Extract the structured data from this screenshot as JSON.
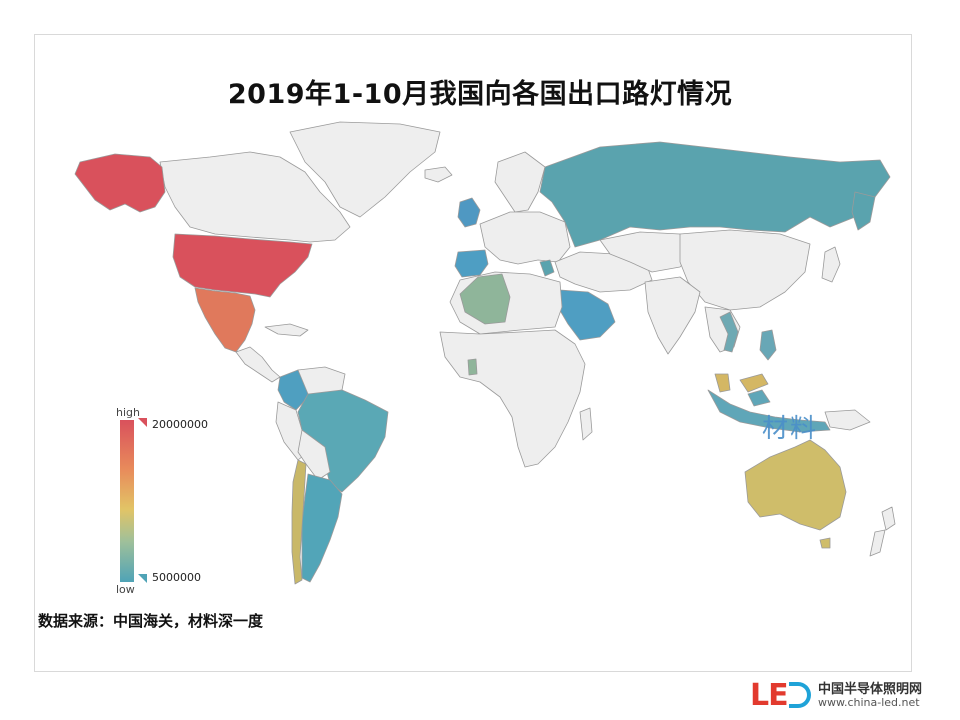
{
  "title": "2019年1-10月我国向各国出口路灯情况",
  "legend": {
    "high_label": "high",
    "low_label": "low",
    "max_value": "20000000",
    "min_value": "5000000",
    "colors": [
      "#d9515c",
      "#e88a5b",
      "#e2c466",
      "#9fc09a",
      "#4fa3b6"
    ]
  },
  "source": "数据来源：中国海关，材料深一度",
  "watermark": "材料",
  "brand": {
    "logo_text": "LE",
    "name": "中国半导体照明网",
    "url": "www.china-led.net"
  },
  "map_colors": {
    "default_land": "#eeeeee",
    "border": "#9a9a9a",
    "usa": "#d9515c",
    "mexico": "#e0795c",
    "russia": "#5aa3ae",
    "brazil": "#5aa8b5",
    "argentina": "#52a5b8",
    "chile": "#c9b868",
    "colombia": "#4f9fc0",
    "australia": "#cfbd6a",
    "saudi_arabia": "#4f9ec2",
    "algeria": "#8fb59a",
    "spain": "#4e9ec3",
    "uk": "#4f98c2",
    "malaysia": "#d4b764",
    "philippines": "#68a7b6",
    "vietnam": "#6ea9b3",
    "indonesia": "#5fa6b8",
    "ghana": "#8fb59a"
  }
}
